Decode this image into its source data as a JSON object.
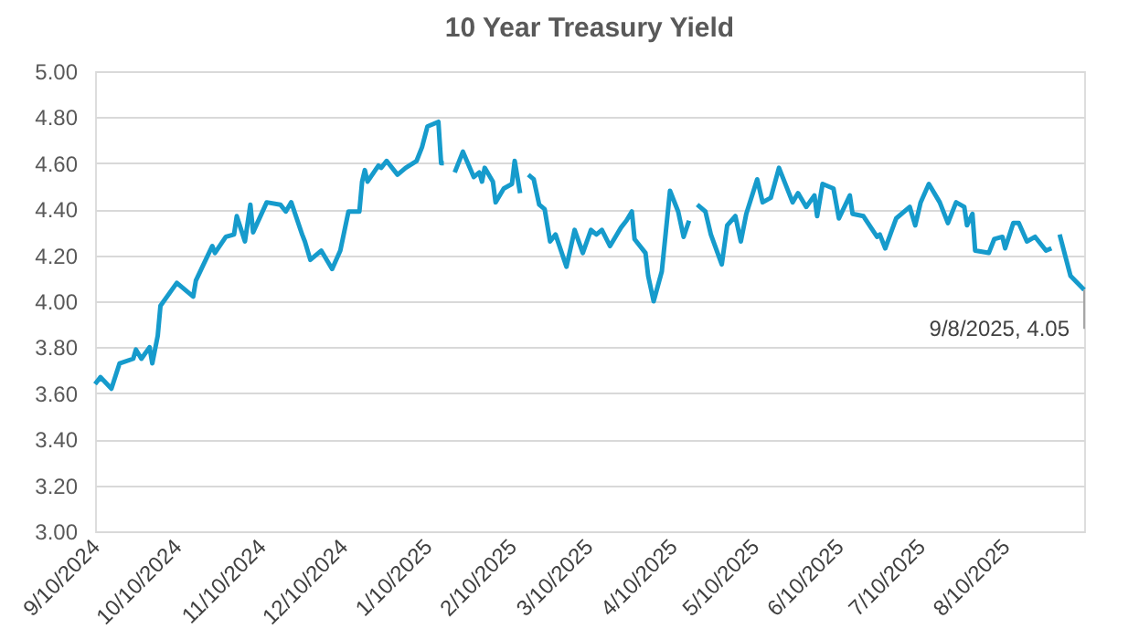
{
  "chart_data": {
    "type": "line",
    "title": "10 Year Treasury Yield",
    "x": [
      "2024-09-10",
      "2024-09-12",
      "2024-09-16",
      "2024-09-19",
      "2024-09-24",
      "2024-09-25",
      "2024-09-27",
      "2024-09-30",
      "2024-10-01",
      "2024-10-03",
      "2024-10-04",
      "2024-10-10",
      "2024-10-16",
      "2024-10-17",
      "2024-10-21",
      "2024-10-23",
      "2024-10-24",
      "2024-10-28",
      "2024-10-31",
      "2024-11-01",
      "2024-11-04",
      "2024-11-06",
      "2024-11-07",
      "2024-11-12",
      "2024-11-17",
      "2024-11-19",
      "2024-11-21",
      "2024-11-25",
      "2024-11-26",
      "2024-11-28",
      "2024-12-02",
      "2024-12-06",
      "2024-12-09",
      "2024-12-12",
      "2024-12-16",
      "2024-12-17",
      "2024-12-18",
      "2024-12-19",
      "2024-12-23",
      "2024-12-24",
      "2024-12-26",
      "2024-12-30",
      "2025-01-02",
      "2025-01-06",
      "2025-01-08",
      "2025-01-10",
      "2025-01-14",
      "2025-01-15",
      "2025-01-16",
      "2025-01-18",
      "2025-01-20",
      "2025-01-23",
      "2025-01-27",
      "2025-01-29",
      "2025-01-30",
      "2025-01-31",
      "2025-02-03",
      "2025-02-04",
      "2025-02-07",
      "2025-02-10",
      "2025-02-11",
      "2025-02-13",
      "2025-02-14",
      "2025-02-16",
      "2025-02-18",
      "2025-02-20",
      "2025-02-22",
      "2025-02-24",
      "2025-02-26",
      "2025-03-02",
      "2025-03-05",
      "2025-03-08",
      "2025-03-11",
      "2025-03-13",
      "2025-03-15",
      "2025-03-18",
      "2025-03-22",
      "2025-03-24",
      "2025-03-26",
      "2025-03-27",
      "2025-03-31",
      "2025-04-01",
      "2025-04-03",
      "2025-04-06",
      "2025-04-09",
      "2025-04-12",
      "2025-04-14",
      "2025-04-16",
      "2025-04-17",
      "2025-04-19",
      "2025-04-22",
      "2025-04-24",
      "2025-04-28",
      "2025-04-30",
      "2025-05-03",
      "2025-05-05",
      "2025-05-07",
      "2025-05-11",
      "2025-05-13",
      "2025-05-16",
      "2025-05-19",
      "2025-05-24",
      "2025-05-26",
      "2025-05-29",
      "2025-06-01",
      "2025-06-02",
      "2025-06-04",
      "2025-06-08",
      "2025-06-10",
      "2025-06-14",
      "2025-06-15",
      "2025-06-19",
      "2025-06-24",
      "2025-06-25",
      "2025-06-27",
      "2025-07-01",
      "2025-07-06",
      "2025-07-08",
      "2025-07-10",
      "2025-07-13",
      "2025-07-17",
      "2025-07-20",
      "2025-07-23",
      "2025-07-26",
      "2025-07-27",
      "2025-07-29",
      "2025-07-30",
      "2025-08-04",
      "2025-08-06",
      "2025-08-09",
      "2025-08-10",
      "2025-08-13",
      "2025-08-15",
      "2025-08-18",
      "2025-08-21",
      "2025-08-25",
      "2025-08-27",
      "2025-08-28",
      "2025-08-30",
      "2025-09-03",
      "2025-09-08"
    ],
    "series": [
      {
        "color": "#169bcc",
        "values": [
          3.64,
          3.67,
          3.62,
          3.73,
          3.75,
          3.79,
          3.75,
          3.8,
          3.73,
          3.85,
          3.98,
          4.08,
          4.02,
          4.09,
          4.19,
          4.24,
          4.21,
          4.28,
          4.29,
          4.37,
          4.26,
          4.42,
          4.3,
          4.43,
          4.42,
          4.39,
          4.43,
          4.29,
          4.26,
          4.18,
          4.22,
          4.14,
          4.22,
          4.39,
          4.39,
          4.52,
          4.57,
          4.52,
          4.59,
          4.58,
          4.61,
          4.55,
          4.58,
          4.61,
          4.67,
          4.76,
          4.78,
          4.6,
          4.6,
          null,
          4.56,
          4.65,
          4.54,
          4.56,
          4.52,
          4.58,
          4.52,
          4.43,
          4.49,
          4.51,
          4.61,
          4.47,
          null,
          4.55,
          4.53,
          4.42,
          4.4,
          4.26,
          4.29,
          4.15,
          4.31,
          4.21,
          4.31,
          4.29,
          4.31,
          4.24,
          4.32,
          4.35,
          4.39,
          4.27,
          4.21,
          4.11,
          4.0,
          4.13,
          4.48,
          4.39,
          4.28,
          4.35,
          null,
          4.42,
          4.39,
          4.29,
          4.16,
          4.33,
          4.37,
          4.26,
          4.38,
          4.53,
          4.43,
          4.45,
          4.58,
          4.43,
          4.47,
          4.41,
          4.46,
          4.37,
          4.51,
          4.49,
          4.36,
          4.46,
          4.38,
          4.37,
          4.28,
          4.29,
          4.23,
          4.36,
          4.41,
          4.33,
          4.43,
          4.51,
          4.43,
          4.34,
          4.43,
          4.41,
          4.33,
          4.38,
          4.22,
          4.21,
          4.27,
          4.28,
          4.23,
          4.34,
          4.34,
          4.26,
          4.28,
          4.22,
          4.23,
          null,
          4.29,
          4.11,
          4.05
        ]
      }
    ],
    "xlim": [
      "2024-09-10",
      "2025-09-08"
    ],
    "xticks": [
      {
        "value": "2024-09-10",
        "label": "9/10/2024"
      },
      {
        "value": "2024-10-10",
        "label": "10/10/2024"
      },
      {
        "value": "2024-11-10",
        "label": "11/10/2024"
      },
      {
        "value": "2024-12-10",
        "label": "12/10/2024"
      },
      {
        "value": "2025-01-10",
        "label": "1/10/2025"
      },
      {
        "value": "2025-02-10",
        "label": "2/10/2025"
      },
      {
        "value": "2025-03-10",
        "label": "3/10/2025"
      },
      {
        "value": "2025-04-10",
        "label": "4/10/2025"
      },
      {
        "value": "2025-05-10",
        "label": "5/10/2025"
      },
      {
        "value": "2025-06-10",
        "label": "6/10/2025"
      },
      {
        "value": "2025-07-10",
        "label": "7/10/2025"
      },
      {
        "value": "2025-08-10",
        "label": "8/10/2025"
      }
    ],
    "ylim": [
      3.0,
      5.0
    ],
    "yticks": [
      {
        "value": 3.0,
        "label": "3.00"
      },
      {
        "value": 3.2,
        "label": "3.20"
      },
      {
        "value": 3.4,
        "label": "3.40"
      },
      {
        "value": 3.6,
        "label": "3.60"
      },
      {
        "value": 3.8,
        "label": "3.80"
      },
      {
        "value": 4.0,
        "label": "4.00"
      },
      {
        "value": 4.2,
        "label": "4.20"
      },
      {
        "value": 4.4,
        "label": "4.40"
      },
      {
        "value": 4.6,
        "label": "4.60"
      },
      {
        "value": 4.8,
        "label": "4.80"
      },
      {
        "value": 5.0,
        "label": "5.00"
      }
    ],
    "grid": "y",
    "marker": "none",
    "line_style": "solid",
    "annotations": [
      {
        "text": "9/8/2025, 4.05",
        "x": "2025-09-08",
        "y": 4.05
      }
    ]
  }
}
